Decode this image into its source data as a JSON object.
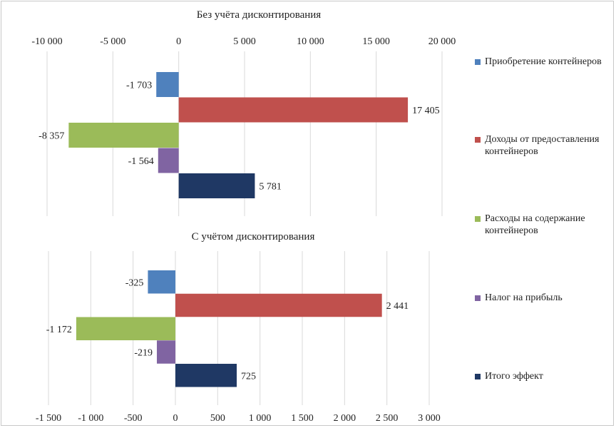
{
  "colors": {
    "acquisition": "#4f81bd",
    "income": "#c0504d",
    "expenses": "#9bbb59",
    "tax": "#8064a2",
    "total": "#1f3864",
    "grid": "#d9d9d9",
    "axis_text": "#222222"
  },
  "legend": [
    {
      "label": "Приобретение контейнеров",
      "color_key": "acquisition"
    },
    {
      "label": "Доходы от предоставления контейнеров",
      "color_key": "income"
    },
    {
      "label": "Расходы на содержание контейнеров",
      "color_key": "expenses"
    },
    {
      "label": "Налог на прибыль",
      "color_key": "tax"
    },
    {
      "label": "Итого эффект",
      "color_key": "total"
    }
  ],
  "chart_data": [
    {
      "type": "bar",
      "orientation": "horizontal",
      "title": "Без учёта дисконтирования",
      "xlim": [
        -10000,
        20000
      ],
      "tick_values": [
        -10000,
        -5000,
        0,
        5000,
        10000,
        15000,
        20000
      ],
      "tick_labels": [
        "-10 000",
        "-5 000",
        "0",
        "5 000",
        "10 000",
        "15 000",
        "20 000"
      ],
      "axis_position": "top",
      "grid": true,
      "series": [
        {
          "name": "Приобретение контейнеров",
          "value": -1703,
          "label": "-1 703",
          "color_key": "acquisition"
        },
        {
          "name": "Доходы от предоставления контейнеров",
          "value": 17405,
          "label": "17 405",
          "color_key": "income"
        },
        {
          "name": "Расходы на содержание контейнеров",
          "value": -8357,
          "label": "-8 357",
          "color_key": "expenses"
        },
        {
          "name": "Налог на прибыль",
          "value": -1564,
          "label": "-1 564",
          "color_key": "tax"
        },
        {
          "name": "Итого эффект",
          "value": 5781,
          "label": "5 781",
          "color_key": "total"
        }
      ]
    },
    {
      "type": "bar",
      "orientation": "horizontal",
      "title": "С учётом дисконтирования",
      "xlim": [
        -1500,
        3000
      ],
      "tick_values": [
        -1500,
        -1000,
        -500,
        0,
        500,
        1000,
        1500,
        2000,
        2500,
        3000
      ],
      "tick_labels": [
        "-1 500",
        "-1 000",
        "-500",
        "0",
        "500",
        "1 000",
        "1 500",
        "2 000",
        "2 500",
        "3 000"
      ],
      "axis_position": "bottom",
      "grid": true,
      "series": [
        {
          "name": "Приобретение контейнеров",
          "value": -325,
          "label": "-325",
          "color_key": "acquisition"
        },
        {
          "name": "Доходы от предоставления контейнеров",
          "value": 2441,
          "label": "2 441",
          "color_key": "income"
        },
        {
          "name": "Расходы на содержание контейнеров",
          "value": -1172,
          "label": "-1 172",
          "color_key": "expenses"
        },
        {
          "name": "Налог на прибыль",
          "value": -219,
          "label": "-219",
          "color_key": "tax"
        },
        {
          "name": "Итого эффект",
          "value": 725,
          "label": "725",
          "color_key": "total"
        }
      ]
    }
  ]
}
